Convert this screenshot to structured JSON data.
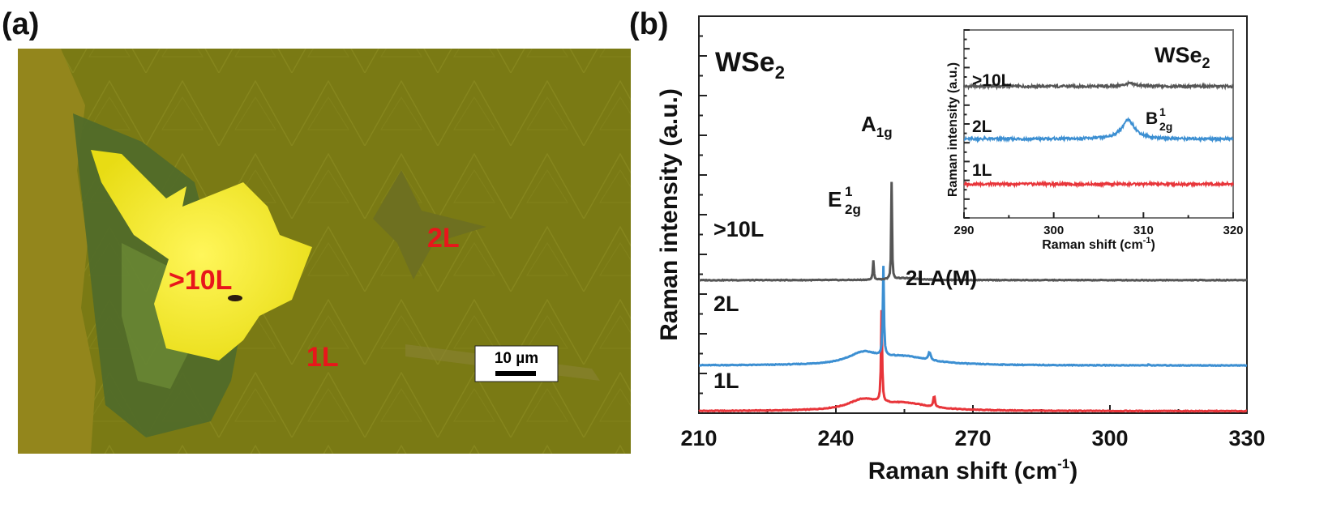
{
  "panel_a": {
    "label": "(a)",
    "regions": [
      ">10L",
      "2L",
      "1L"
    ],
    "scale_bar": "10 µm",
    "colors": {
      "substrate": "#7a7a12",
      "flake": "#f7ee1a",
      "label": "#e8161b"
    }
  },
  "panel_b": {
    "label": "(b)"
  },
  "chart_data": [
    {
      "type": "line",
      "title": "WSe2",
      "title_main": "WSe",
      "title_sub": "2",
      "xlabel": "Raman shift (cm",
      "xlabel_sup": "-1",
      "xlabel_end": ")",
      "ylabel": "Raman intensity (a.u.)",
      "xlim": [
        210,
        330
      ],
      "ylim": [
        0,
        10
      ],
      "xticks": [
        210,
        240,
        270,
        300,
        330
      ],
      "grid": false,
      "series": [
        {
          "name": "1L",
          "color": "#e8353a",
          "offset": 0.05,
          "peaks": [
            [
              250,
              0.14,
              2.3
            ],
            [
              261.5,
              0.2,
              0.3
            ],
            [
              255,
              7,
              0.18
            ],
            [
              246,
              4,
              0.25
            ]
          ]
        },
        {
          "name": "2L",
          "color": "#3c8fd2",
          "offset": 1.2,
          "peaks": [
            [
              250.4,
              0.14,
              2.25
            ],
            [
              260.5,
              0.3,
              0.2
            ],
            [
              255,
              7,
              0.2
            ],
            [
              246,
              4,
              0.28
            ],
            [
              308.5,
              0.2,
              0.02
            ]
          ]
        },
        {
          "name": ">10L",
          "color": "#555555",
          "offset": 3.35,
          "peaks": [
            [
              252.2,
              0.1,
              2.45
            ],
            [
              248.2,
              0.13,
              0.48
            ],
            [
              255,
              4,
              0.05
            ]
          ]
        }
      ],
      "annotations": [
        {
          "text": "A",
          "sub": "1g",
          "x": 251.5
        },
        {
          "text": "E",
          "sup": "1",
          "sub": "2g",
          "x": 246
        },
        {
          "text": "2LA(M)",
          "x": 262
        }
      ]
    },
    {
      "type": "line",
      "title": "WSe2",
      "title_main": "WSe",
      "title_sub": "2",
      "xlabel": "Raman shift (cm",
      "xlabel_sup": "-1",
      "xlabel_end": ")",
      "ylabel": "Raman intensity (a.u.)",
      "xlim": [
        290,
        320
      ],
      "ylim": [
        0,
        10
      ],
      "xticks": [
        290,
        300,
        310,
        320
      ],
      "grid": false,
      "series": [
        {
          "name": ">10L",
          "color": "#555555",
          "offset": 7.0,
          "peaks": [
            [
              308.5,
              0.8,
              0.15
            ]
          ]
        },
        {
          "name": "2L",
          "color": "#3c8fd2",
          "offset": 4.2,
          "peaks": [
            [
              308.3,
              0.9,
              1.0
            ]
          ]
        },
        {
          "name": "1L",
          "color": "#e8353a",
          "offset": 1.8,
          "peaks": []
        }
      ],
      "annotations": [
        {
          "text": "B",
          "sup": "1",
          "sub": "2g",
          "x": 310.5
        }
      ]
    }
  ]
}
